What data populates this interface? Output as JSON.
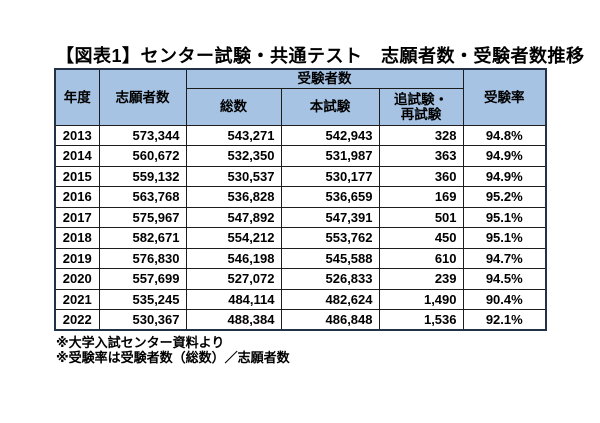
{
  "colors": {
    "background": "#ffffff",
    "header_bg": "#a6c3e4",
    "inner_border": "#1c1c1c",
    "outer_border": "#243247",
    "text": "#000000"
  },
  "chart_data": {
    "type": "table",
    "title": "【図表1】センター試験・共通テスト　志願者数・受験者数推移",
    "header": {
      "year": "年度",
      "applicants": "志願者数",
      "examinees": "受験者数",
      "total": "総数",
      "main": "本試験",
      "makeup_line1": "追試験・",
      "makeup_line2": "再試験",
      "rate": "受験率"
    },
    "rows": [
      {
        "year": "2013",
        "applicants": "573,344",
        "total": "543,271",
        "main": "542,943",
        "makeup": "328",
        "rate": "94.8%"
      },
      {
        "year": "2014",
        "applicants": "560,672",
        "total": "532,350",
        "main": "531,987",
        "makeup": "363",
        "rate": "94.9%"
      },
      {
        "year": "2015",
        "applicants": "559,132",
        "total": "530,537",
        "main": "530,177",
        "makeup": "360",
        "rate": "94.9%"
      },
      {
        "year": "2016",
        "applicants": "563,768",
        "total": "536,828",
        "main": "536,659",
        "makeup": "169",
        "rate": "95.2%"
      },
      {
        "year": "2017",
        "applicants": "575,967",
        "total": "547,892",
        "main": "547,391",
        "makeup": "501",
        "rate": "95.1%"
      },
      {
        "year": "2018",
        "applicants": "582,671",
        "total": "554,212",
        "main": "553,762",
        "makeup": "450",
        "rate": "95.1%"
      },
      {
        "year": "2019",
        "applicants": "576,830",
        "total": "546,198",
        "main": "545,588",
        "makeup": "610",
        "rate": "94.7%"
      },
      {
        "year": "2020",
        "applicants": "557,699",
        "total": "527,072",
        "main": "526,833",
        "makeup": "239",
        "rate": "94.5%"
      },
      {
        "year": "2021",
        "applicants": "535,245",
        "total": "484,114",
        "main": "482,624",
        "makeup": "1,490",
        "rate": "90.4%"
      },
      {
        "year": "2022",
        "applicants": "530,367",
        "total": "488,384",
        "main": "486,848",
        "makeup": "1,536",
        "rate": "92.1%"
      }
    ]
  },
  "footnotes": {
    "source": "※大学入試センター資料より",
    "formula": "※受験率は受験者数（総数）／志願者数"
  }
}
